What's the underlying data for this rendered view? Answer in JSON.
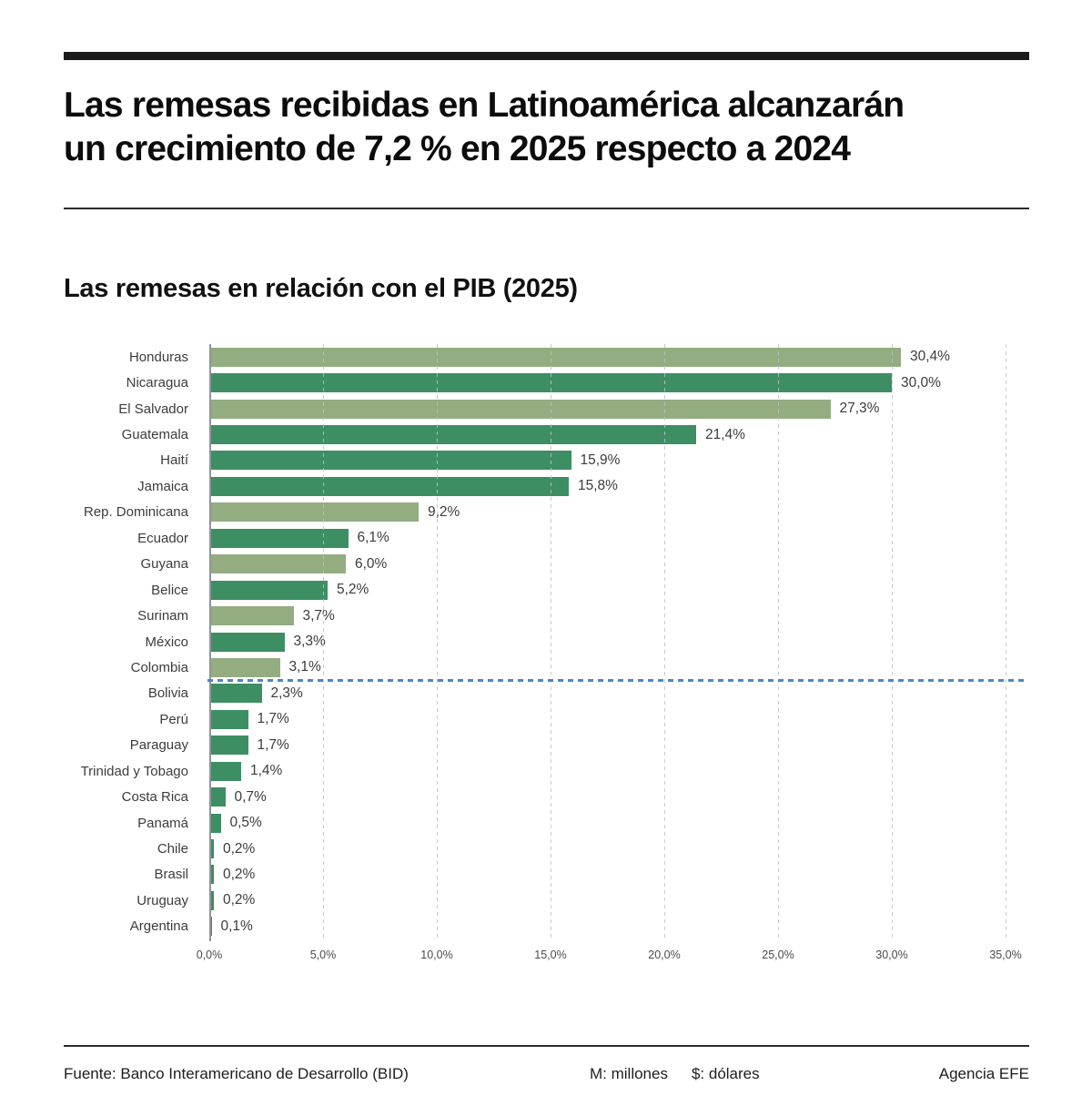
{
  "header": {
    "title": "Las remesas recibidas en Latinoamérica alcanzarán\nun crecimiento de 7,2 % en 2025 respecto a 2024"
  },
  "chart_data": {
    "type": "bar",
    "orientation": "horizontal",
    "title": "Las remesas en relación con el PIB (2025)",
    "categories": [
      "Honduras",
      "Nicaragua",
      "El Salvador",
      "Guatemala",
      "Haití",
      "Jamaica",
      "Rep. Dominicana",
      "Ecuador",
      "Guyana",
      "Belice",
      "Surinam",
      "México",
      "Colombia",
      "Bolivia",
      "Perú",
      "Paraguay",
      "Trinidad y Tobago",
      "Costa Rica",
      "Panamá",
      "Chile",
      "Brasil",
      "Uruguay",
      "Argentina"
    ],
    "values": [
      30.4,
      30.0,
      27.3,
      21.4,
      15.9,
      15.8,
      9.2,
      6.1,
      6.0,
      5.2,
      3.7,
      3.3,
      3.1,
      2.3,
      1.7,
      1.7,
      1.4,
      0.7,
      0.5,
      0.2,
      0.2,
      0.2,
      0.1
    ],
    "value_labels": [
      "30,4%",
      "30,0%",
      "27,3%",
      "21,4%",
      "15,9%",
      "15,8%",
      "9,2%",
      "6,1%",
      "6,0%",
      "5,2%",
      "3,7%",
      "3,3%",
      "3,1%",
      "2,3%",
      "1,7%",
      "1,7%",
      "1,4%",
      "0,7%",
      "0,5%",
      "0,2%",
      "0,2%",
      "0,2%",
      "0,1%"
    ],
    "bar_colors": [
      "light",
      "dark",
      "light",
      "dark",
      "dark",
      "dark",
      "light",
      "dark",
      "light",
      "dark",
      "light",
      "dark",
      "light",
      "dark",
      "dark",
      "dark",
      "dark",
      "dark",
      "dark",
      "dark",
      "dark",
      "dark",
      "dark"
    ],
    "colors": {
      "light": "#93AD80",
      "dark": "#3E8E63",
      "reference_line": "#4C87C6"
    },
    "x_ticks": [
      "0,0%",
      "5,0%",
      "10,0%",
      "15,0%",
      "20,0%",
      "25,0%",
      "30,0%",
      "35,0%"
    ],
    "x_tick_values": [
      0,
      5,
      10,
      15,
      20,
      25,
      30,
      35
    ],
    "xlim": [
      0,
      35.8
    ],
    "grid": "vertical dashed gridlines at 5% steps",
    "legend": "none",
    "reference_line": {
      "style": "horizontal dashed",
      "after_index": 13,
      "between": [
        "Colombia",
        "Bolivia"
      ]
    }
  },
  "footer": {
    "source": "Fuente: Banco Interamericano de Desarrollo (BID)",
    "unit_m": "M: millones",
    "unit_dollar": "$: dólares",
    "credit": "Agencia EFE"
  }
}
